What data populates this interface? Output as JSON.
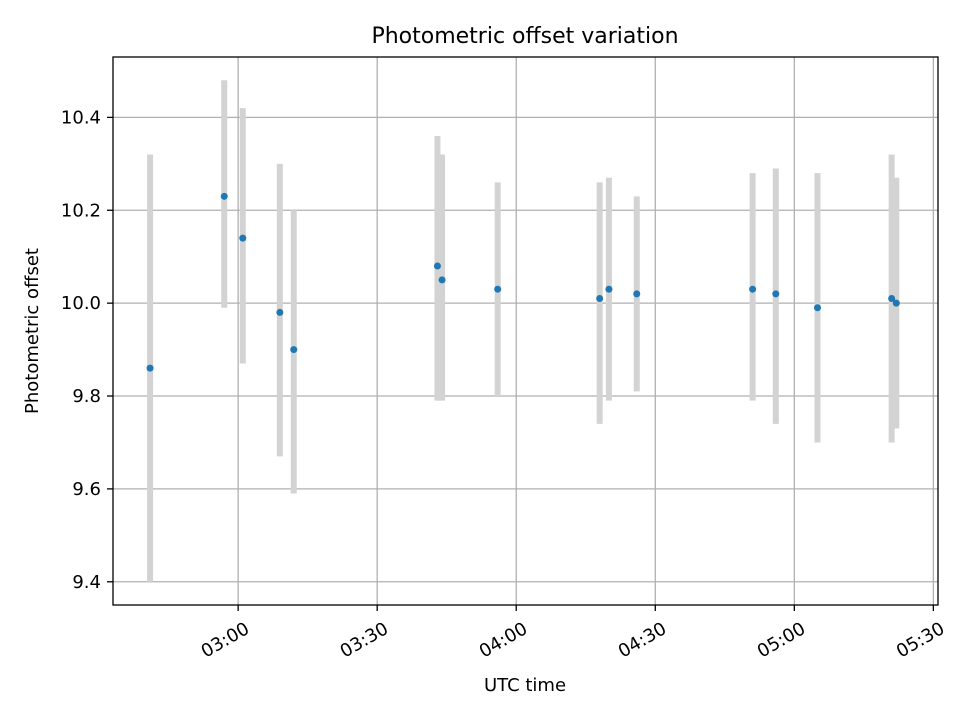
{
  "chart_data": {
    "type": "scatter",
    "title": "Photometric offset variation",
    "xlabel": "UTC time",
    "ylabel": "Photometric offset",
    "grid": true,
    "x_axis": {
      "kind": "time",
      "range": [
        "02:33",
        "05:31"
      ],
      "ticks": [
        "03:00",
        "03:30",
        "04:00",
        "04:30",
        "05:00",
        "05:30"
      ],
      "tick_label_rotation_deg": 30
    },
    "y_axis": {
      "range": [
        9.35,
        10.53
      ],
      "ticks": [
        9.4,
        9.6,
        9.8,
        10.0,
        10.2,
        10.4
      ],
      "tick_labels": [
        "9.4",
        "9.6",
        "9.8",
        "10.0",
        "10.2",
        "10.4"
      ]
    },
    "series": [
      {
        "marker_color": "#1f77b4",
        "errorbar_color": "#d3d3d3",
        "points": [
          {
            "x": "02:41",
            "y": 9.86,
            "ylow": 9.4,
            "yhigh": 10.32
          },
          {
            "x": "02:57",
            "y": 10.23,
            "ylow": 9.99,
            "yhigh": 10.48
          },
          {
            "x": "03:01",
            "y": 10.14,
            "ylow": 9.87,
            "yhigh": 10.42
          },
          {
            "x": "03:09",
            "y": 9.98,
            "ylow": 9.67,
            "yhigh": 10.3
          },
          {
            "x": "03:12",
            "y": 9.9,
            "ylow": 9.59,
            "yhigh": 10.2
          },
          {
            "x": "03:43",
            "y": 10.08,
            "ylow": 9.79,
            "yhigh": 10.36
          },
          {
            "x": "03:44",
            "y": 10.05,
            "ylow": 9.79,
            "yhigh": 10.32
          },
          {
            "x": "03:56",
            "y": 10.03,
            "ylow": 9.8,
            "yhigh": 10.26
          },
          {
            "x": "04:18",
            "y": 10.01,
            "ylow": 9.74,
            "yhigh": 10.26
          },
          {
            "x": "04:20",
            "y": 10.03,
            "ylow": 9.79,
            "yhigh": 10.27
          },
          {
            "x": "04:26",
            "y": 10.02,
            "ylow": 9.81,
            "yhigh": 10.23
          },
          {
            "x": "04:51",
            "y": 10.03,
            "ylow": 9.79,
            "yhigh": 10.28
          },
          {
            "x": "04:56",
            "y": 10.02,
            "ylow": 9.74,
            "yhigh": 10.29
          },
          {
            "x": "05:05",
            "y": 9.99,
            "ylow": 9.7,
            "yhigh": 10.28
          },
          {
            "x": "05:21",
            "y": 10.01,
            "ylow": 9.7,
            "yhigh": 10.32
          },
          {
            "x": "05:22",
            "y": 10.0,
            "ylow": 9.73,
            "yhigh": 10.27
          }
        ]
      }
    ]
  }
}
